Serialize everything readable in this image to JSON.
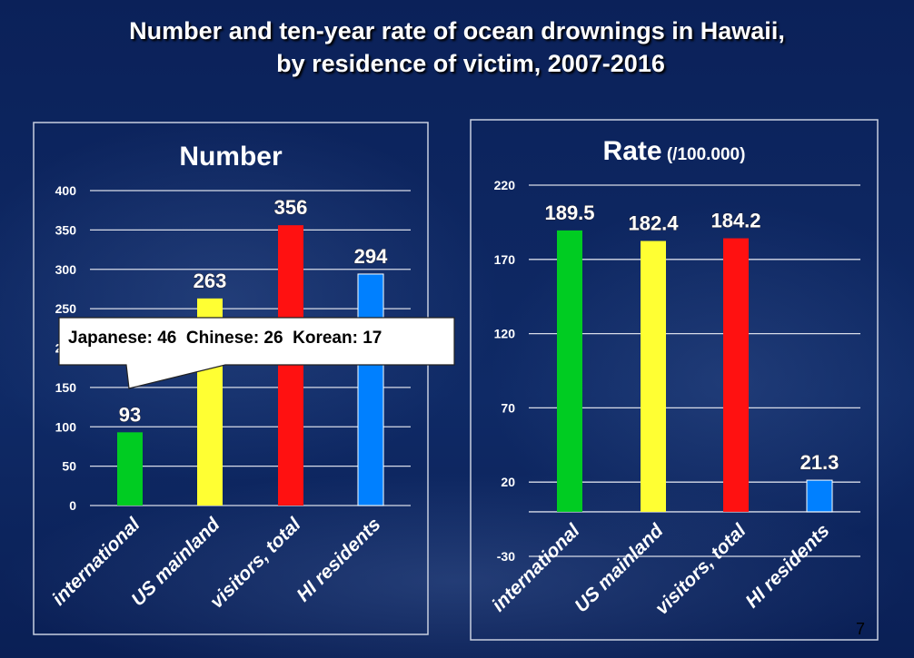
{
  "title_line1": "Number and ten-year rate of ocean drownings in Hawaii,",
  "title_line2": "by residence of victim, 2007-2016",
  "page_number": "7",
  "callout": "Japanese: 46  Chinese: 26  Korean: 17",
  "chart_data": [
    {
      "type": "bar",
      "title": "Number",
      "title_suffix": "",
      "categories": [
        "international",
        "US mainland",
        "visitors, total",
        "HI residents"
      ],
      "values": [
        93,
        263,
        356,
        294
      ],
      "data_labels": [
        "93",
        "263",
        "356",
        "294"
      ],
      "colors": [
        "#00cc22",
        "#ffff33",
        "#ff1111",
        "#0080ff"
      ],
      "ylim": [
        0,
        400
      ],
      "yticks": [
        0,
        50,
        100,
        150,
        200,
        250,
        300,
        350,
        400
      ],
      "grid": true
    },
    {
      "type": "bar",
      "title": "Rate",
      "title_suffix": "(/100.000)",
      "categories": [
        "international",
        "US mainland",
        "visitors, total",
        "HI residents"
      ],
      "values": [
        189.5,
        182.4,
        184.2,
        21.3
      ],
      "data_labels": [
        "189.5",
        "182.4",
        "184.2",
        "21.3"
      ],
      "colors": [
        "#00cc22",
        "#ffff33",
        "#ff1111",
        "#0080ff"
      ],
      "ylim": [
        -30,
        220
      ],
      "yticks": [
        -30,
        20,
        70,
        120,
        170,
        220
      ],
      "grid": true
    }
  ]
}
